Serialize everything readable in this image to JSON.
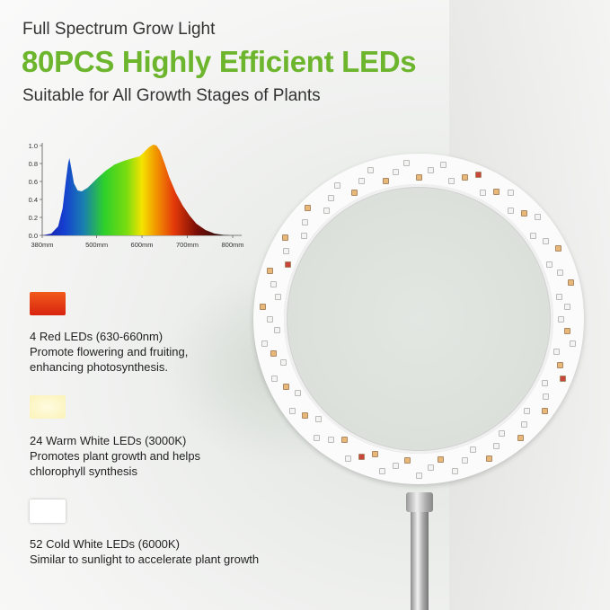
{
  "header": {
    "subtitle_top": "Full Spectrum Grow Light",
    "headline": "80PCS Highly Efficient LEDs",
    "tagline": "Suitable for All Growth Stages of Plants",
    "headline_color": "#6cb52d"
  },
  "chart_data": {
    "type": "area",
    "title": "",
    "xlabel": "",
    "ylabel": "",
    "xlim": [
      380,
      820
    ],
    "ylim": [
      0,
      1.0
    ],
    "x_tick_labels": [
      "380mm",
      "500mm",
      "600mm",
      "700mm",
      "800mm"
    ],
    "x_ticks": [
      380,
      500,
      600,
      700,
      800
    ],
    "y_tick_labels": [
      "0.0",
      "0.2",
      "0.4",
      "0.6",
      "0.8",
      "1.0"
    ],
    "y_ticks": [
      0,
      0.2,
      0.4,
      0.6,
      0.8,
      1.0
    ],
    "x": [
      380,
      400,
      415,
      425,
      432,
      437,
      440,
      444,
      450,
      458,
      467,
      480,
      500,
      520,
      540,
      560,
      580,
      595,
      605,
      615,
      625,
      632,
      640,
      650,
      660,
      675,
      690,
      705,
      720,
      740,
      760,
      780,
      795
    ],
    "y": [
      0,
      0.02,
      0.1,
      0.3,
      0.6,
      0.8,
      0.86,
      0.75,
      0.58,
      0.5,
      0.49,
      0.53,
      0.63,
      0.72,
      0.79,
      0.83,
      0.86,
      0.88,
      0.93,
      0.98,
      1.01,
      1.0,
      0.94,
      0.8,
      0.65,
      0.47,
      0.33,
      0.22,
      0.13,
      0.06,
      0.02,
      0.005,
      0
    ],
    "fill": "visible light spectrum gradient"
  },
  "leds": [
    {
      "swatch_color": "#e8391b",
      "title": "4 Red LEDs (630-660nm)",
      "desc": [
        "Promote flowering and fruiting,",
        "enhancing photosynthesis."
      ],
      "count": 4,
      "chip_color": "#c9443a"
    },
    {
      "swatch_color": "#fbf3b8",
      "title": "24 Warm White LEDs (3000K)",
      "desc": [
        "Promotes plant growth and helps",
        "chlorophyll synthesis"
      ],
      "count": 24,
      "chip_color": "#e8b878"
    },
    {
      "swatch_color": "#ffffff",
      "title": "52 Cold White LEDs (6000K)",
      "desc": [
        "Similar to sunlight to accelerate plant growth"
      ],
      "count": 52,
      "chip_color": "#f4f4f2"
    }
  ]
}
